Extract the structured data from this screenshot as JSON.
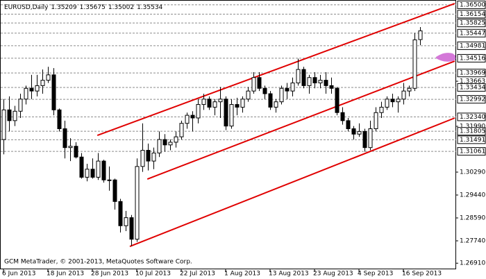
{
  "chart_data": {
    "type": "candlestick",
    "symbol": "EURUSD,Daily",
    "footer": "GCM MetaTrader, © 2001-2013, MetaQuotes Software Corp.",
    "categories": [
      "6 Jun 2013",
      null,
      null,
      null,
      null,
      null,
      null,
      null,
      "18 Jun 2013",
      null,
      null,
      null,
      null,
      null,
      null,
      null,
      "28 Jun 2013",
      null,
      null,
      null,
      null,
      null,
      null,
      null,
      "10 Jul 2013",
      null,
      null,
      null,
      null,
      null,
      null,
      null,
      "22 Jul 2013",
      null,
      null,
      null,
      null,
      null,
      null,
      null,
      "1 Aug 2013",
      null,
      null,
      null,
      null,
      null,
      null,
      null,
      "13 Aug 2013",
      null,
      null,
      null,
      null,
      null,
      null,
      null,
      "23 Aug 2013",
      null,
      null,
      null,
      null,
      null,
      null,
      null,
      "4 Sep 2013",
      null,
      null,
      null,
      null,
      null,
      null,
      null,
      "16 Sep 2013",
      null,
      null,
      null
    ],
    "open": [
      1.315,
      1.326,
      1.322,
      1.3255,
      1.33,
      1.334,
      1.333,
      1.335,
      1.337,
      1.339,
      1.326,
      1.319,
      1.312,
      1.3125,
      1.3085,
      1.301,
      1.304,
      1.301,
      1.307,
      1.3,
      1.3,
      1.292,
      1.283,
      1.286,
      1.278,
      1.305,
      1.311,
      1.307,
      1.31,
      1.315,
      1.313,
      1.314,
      1.316,
      1.321,
      1.324,
      1.323,
      1.328,
      1.33,
      1.327,
      1.329,
      1.33,
      1.32,
      1.328,
      1.327,
      1.33,
      1.333,
      1.338,
      1.334,
      1.332,
      1.327,
      1.329,
      1.334,
      1.333,
      1.336,
      1.341,
      1.335,
      1.338,
      1.336,
      1.337,
      1.335,
      1.334,
      1.325,
      1.322,
      1.319,
      1.317,
      1.318,
      1.312,
      1.319,
      1.325,
      1.327,
      1.33,
      1.329,
      1.33,
      1.333,
      1.334,
      1.35209
    ],
    "high": [
      1.33,
      1.331,
      1.3275,
      1.332,
      1.335,
      1.339,
      1.339,
      1.341,
      1.342,
      1.3415,
      1.3265,
      1.322,
      1.3155,
      1.314,
      1.31,
      1.306,
      1.308,
      1.31,
      1.3075,
      1.305,
      1.3005,
      1.293,
      1.2885,
      1.287,
      1.308,
      1.321,
      1.3135,
      1.312,
      1.318,
      1.317,
      1.315,
      1.318,
      1.322,
      1.325,
      1.3255,
      1.33,
      1.332,
      1.331,
      1.33,
      1.3345,
      1.331,
      1.33,
      1.3305,
      1.331,
      1.3345,
      1.34,
      1.34,
      1.335,
      1.333,
      1.33,
      1.335,
      1.336,
      1.338,
      1.345,
      1.342,
      1.339,
      1.34,
      1.339,
      1.34,
      1.338,
      1.3345,
      1.327,
      1.323,
      1.32,
      1.321,
      1.319,
      1.322,
      1.327,
      1.329,
      1.331,
      1.332,
      1.331,
      1.336,
      1.335,
      1.3545,
      1.35675
    ],
    "low": [
      1.3095,
      1.318,
      1.32,
      1.323,
      1.328,
      1.33,
      1.331,
      1.332,
      1.336,
      1.324,
      1.318,
      1.308,
      1.307,
      1.308,
      1.3005,
      1.2995,
      1.3005,
      1.3,
      1.299,
      1.296,
      1.289,
      1.2805,
      1.281,
      1.2755,
      1.277,
      1.303,
      1.3035,
      1.304,
      1.3085,
      1.3105,
      1.311,
      1.312,
      1.315,
      1.319,
      1.318,
      1.321,
      1.326,
      1.326,
      1.324,
      1.323,
      1.3185,
      1.319,
      1.324,
      1.325,
      1.329,
      1.332,
      1.333,
      1.33,
      1.326,
      1.325,
      1.328,
      1.33,
      1.331,
      1.335,
      1.334,
      1.332,
      1.334,
      1.334,
      1.332,
      1.332,
      1.324,
      1.3205,
      1.318,
      1.315,
      1.316,
      1.3105,
      1.311,
      1.318,
      1.323,
      1.326,
      1.327,
      1.325,
      1.328,
      1.331,
      1.333,
      1.35002
    ],
    "close": [
      1.326,
      1.322,
      1.3255,
      1.33,
      1.334,
      1.333,
      1.335,
      1.337,
      1.339,
      1.326,
      1.319,
      1.312,
      1.3125,
      1.3085,
      1.301,
      1.304,
      1.301,
      1.307,
      1.3,
      1.3,
      1.292,
      1.283,
      1.286,
      1.278,
      1.305,
      1.311,
      1.307,
      1.31,
      1.315,
      1.313,
      1.314,
      1.316,
      1.321,
      1.324,
      1.323,
      1.328,
      1.33,
      1.327,
      1.329,
      1.33,
      1.32,
      1.328,
      1.327,
      1.33,
      1.333,
      1.338,
      1.334,
      1.332,
      1.327,
      1.329,
      1.334,
      1.333,
      1.336,
      1.341,
      1.335,
      1.338,
      1.336,
      1.337,
      1.335,
      1.334,
      1.325,
      1.322,
      1.319,
      1.317,
      1.318,
      1.312,
      1.319,
      1.325,
      1.327,
      1.33,
      1.329,
      1.33,
      1.333,
      1.334,
      1.352,
      1.35534
    ],
    "ylim": [
      1.26684,
      1.36678
    ],
    "yticks": [
      1.33663,
      {
        "value": 1.3199,
        "label": "1.31990"
      },
      {
        "value": 1.3029,
        "label": "1.30290"
      },
      {
        "value": 1.2944,
        "label": "1.29440"
      },
      {
        "value": 1.2859,
        "label": "1.28590"
      },
      {
        "value": 1.2774,
        "label": "1.27740"
      },
      {
        "value": 1.2691,
        "label": "1.26910"
      }
    ],
    "levels": [
      {
        "value": 1.365,
        "label": "1.36500"
      },
      1.36154,
      1.35825,
      1.35447,
      1.34981,
      1.34516,
      1.33969,
      1.33434,
      1.32992,
      {
        "value": 1.3234,
        "label": "1.32340"
      },
      1.31805,
      1.31491,
      1.31061
    ],
    "trendlines": [
      {
        "color": "#e00000",
        "x": [
          16.9,
          81.25
        ],
        "values": [
          1.31655,
          1.36549
        ]
      },
      {
        "color": "#e00000",
        "x": [
          25.9,
          81.25
        ],
        "values": [
          1.30032,
          1.34411
        ]
      },
      {
        "color": "#e00000",
        "x": [
          22.75,
          81.25
        ],
        "values": [
          1.27533,
          1.32299
        ]
      }
    ]
  }
}
